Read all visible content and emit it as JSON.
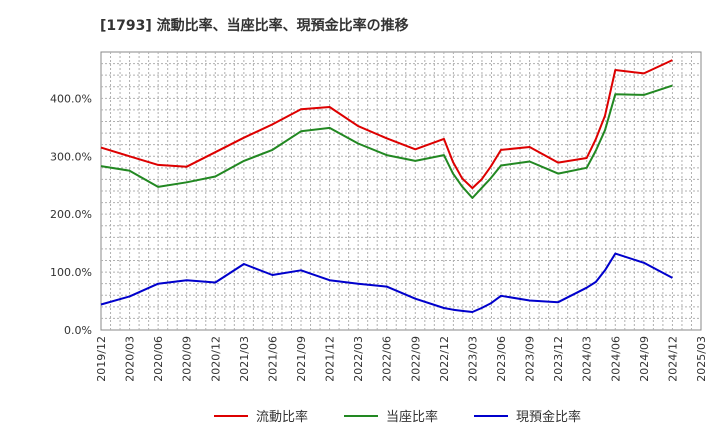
{
  "chart_data": {
    "type": "line",
    "title": "[1793]  流動比率、当座比率、現預金比率の推移",
    "xlabel": "",
    "ylabel": "",
    "ylim": [
      0,
      480
    ],
    "yticks": [
      0,
      100,
      200,
      300,
      400
    ],
    "ytick_labels": [
      "0.0%",
      "100.0%",
      "200.0%",
      "300.0%",
      "400.0%"
    ],
    "xtick_labels": [
      "2019/12",
      "2020/03",
      "2020/06",
      "2020/09",
      "2020/12",
      "2021/03",
      "2021/06",
      "2021/09",
      "2021/12",
      "2022/03",
      "2022/06",
      "2022/09",
      "2022/12",
      "2023/03",
      "2023/06",
      "2023/09",
      "2023/12",
      "2024/03",
      "2024/06",
      "2024/09",
      "2024/12",
      "2025/03"
    ],
    "grid": true,
    "legend_position": "bottom",
    "x": [
      2019.92,
      2020.17,
      2020.42,
      2020.67,
      2020.92,
      2021.17,
      2021.42,
      2021.67,
      2021.92,
      2022.17,
      2022.42,
      2022.67,
      2022.92,
      2023.0,
      2023.08,
      2023.17,
      2023.25,
      2023.33,
      2023.42,
      2023.67,
      2023.92,
      2024.17,
      2024.25,
      2024.33,
      2024.42,
      2024.67,
      2024.92
    ],
    "series": [
      {
        "name": "流動比率",
        "color": "#dd0000",
        "values": [
          315,
          300,
          285,
          282,
          307,
          332,
          355,
          381,
          385,
          352,
          331,
          312,
          330,
          290,
          262,
          245,
          260,
          282,
          311,
          316,
          289,
          297,
          330,
          370,
          449,
          443,
          466
        ]
      },
      {
        "name": "当座比率",
        "color": "#228822",
        "values": [
          283,
          275,
          247,
          255,
          265,
          292,
          311,
          343,
          349,
          322,
          302,
          292,
          302,
          270,
          248,
          228,
          245,
          262,
          284,
          291,
          270,
          280,
          310,
          345,
          407,
          406,
          422
        ]
      },
      {
        "name": "現預金比率",
        "color": "#0000cc",
        "values": [
          44,
          58,
          80,
          86,
          82,
          114,
          95,
          103,
          86,
          80,
          75,
          54,
          38,
          35,
          33,
          31,
          38,
          46,
          59,
          51,
          48,
          73,
          83,
          103,
          132,
          116,
          90
        ]
      }
    ]
  }
}
